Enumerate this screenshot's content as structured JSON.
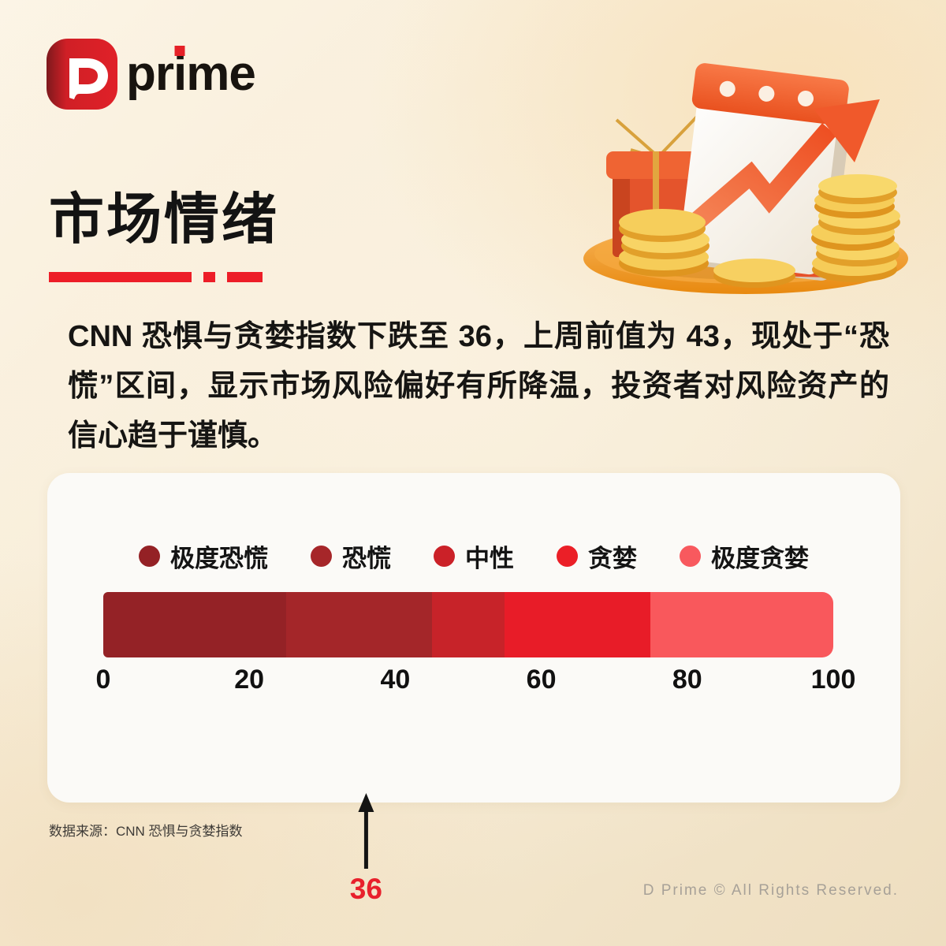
{
  "brand": {
    "name_pre": "pr",
    "name_i": "i",
    "name_post": "me"
  },
  "header": {
    "title": "市场情绪"
  },
  "summary": "CNN 恐惧与贪婪指数下跌至 36，上周前值为 43，现处于“恐慌”区间，显示市场风险偏好有所降温，投资者对风险资产的信心趋于谨慎。",
  "chart_data": {
    "type": "bar",
    "title": "CNN 恐惧与贪婪指数",
    "legend": [
      {
        "label": "极度恐慌",
        "color": "#942125"
      },
      {
        "label": "恐慌",
        "color": "#A62629"
      },
      {
        "label": "中性",
        "color": "#CB2128"
      },
      {
        "label": "贪婪",
        "color": "#EB1F27"
      },
      {
        "label": "极度贪婪",
        "color": "#F8595E"
      }
    ],
    "segments": [
      {
        "label": "极度恐慌",
        "from": 0,
        "to": 25,
        "color": "#942226"
      },
      {
        "label": "恐慌",
        "from": 25,
        "to": 45,
        "color": "#A42629"
      },
      {
        "label": "中性",
        "from": 45,
        "to": 55,
        "color": "#C72329"
      },
      {
        "label": "贪婪",
        "from": 55,
        "to": 75,
        "color": "#E81C28"
      },
      {
        "label": "极度贪婪",
        "from": 75,
        "to": 100,
        "color": "#F9585C"
      }
    ],
    "axis": {
      "min": 0,
      "max": 100,
      "ticks": [
        0,
        20,
        40,
        60,
        80,
        100
      ]
    },
    "current_value": 36,
    "previous_value": 43,
    "legend_position": "top",
    "grid": false
  },
  "source": {
    "label": "数据来源：CNN 恐惧与贪婪指数"
  },
  "footer": {
    "copyright": "D Prime © All Rights Reserved."
  },
  "accent_color": "#ED1D27"
}
